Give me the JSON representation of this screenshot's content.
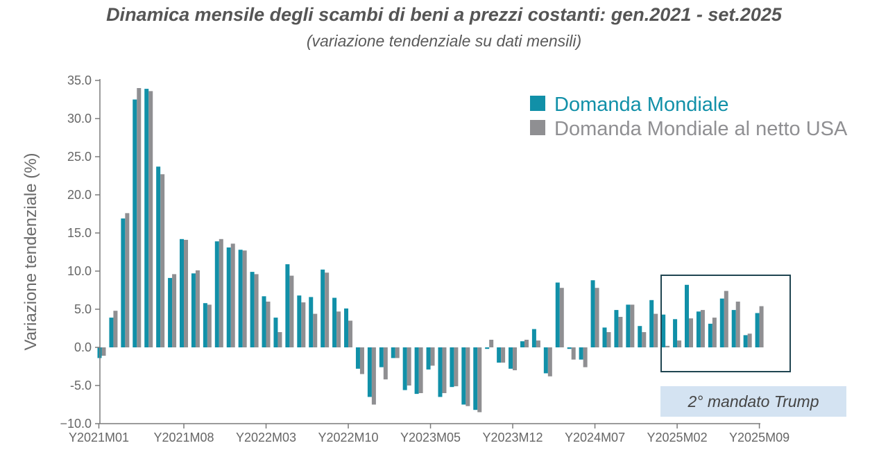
{
  "title": "Dinamica mensile degli scambi di beni a prezzi costanti: gen.2021 - set.2025",
  "subtitle": "(variazione tendenziale su dati mensili)",
  "annotation": "2° mandato Trump",
  "colors": {
    "series1": "#1190a8",
    "series2": "#8f8f92",
    "axis": "#7a7a7a",
    "box": "#1f4450",
    "annotation_bg": "#d4e3f2"
  },
  "chart_data": {
    "type": "bar",
    "ylabel": "Variazione tendenziale (%)",
    "ylim": [
      -10,
      35
    ],
    "yticks": [
      "35.0",
      "30.0",
      "25.0",
      "20.0",
      "15.0",
      "10.0",
      "5.0",
      "0.0",
      "-5.0",
      "−10.0"
    ],
    "ytick_values": [
      35,
      30,
      25,
      20,
      15,
      10,
      5,
      0,
      -5,
      -10
    ],
    "xtick_labels": [
      {
        "index": 0,
        "label": "Y2021M01"
      },
      {
        "index": 7,
        "label": "Y2021M08"
      },
      {
        "index": 14,
        "label": "Y2022M03"
      },
      {
        "index": 21,
        "label": "Y2022M10"
      },
      {
        "index": 28,
        "label": "Y2023M05"
      },
      {
        "index": 35,
        "label": "Y2023M12"
      },
      {
        "index": 42,
        "label": "Y2024M07"
      },
      {
        "index": 49,
        "label": "Y2025M02"
      },
      {
        "index": 56,
        "label": "Y2025M09"
      }
    ],
    "legend_position": "top-right",
    "series": [
      {
        "name": "Domanda Mondiale",
        "values": [
          -1.4,
          3.9,
          16.9,
          32.5,
          33.9,
          23.7,
          9.1,
          14.2,
          9.7,
          5.8,
          13.9,
          13.1,
          12.8,
          9.9,
          6.7,
          3.9,
          10.9,
          6.8,
          6.6,
          10.2,
          6.5,
          5.1,
          -2.8,
          -6.5,
          -2.6,
          -1.4,
          -5.6,
          -6.1,
          -2.9,
          -6.5,
          -5.2,
          -7.5,
          -8.2,
          -0.2,
          -2.0,
          -2.8,
          0.8,
          2.4,
          -3.4,
          8.5,
          -0.2,
          -1.6,
          8.8,
          2.6,
          4.9,
          5.6,
          2.8,
          6.2,
          4.3,
          3.7,
          8.2,
          4.7,
          3.1,
          6.4,
          4.9,
          1.6,
          4.5
        ]
      },
      {
        "name": "Domanda Mondiale al netto USA",
        "values": [
          -1.1,
          4.8,
          17.6,
          34.0,
          33.6,
          22.7,
          9.6,
          14.1,
          10.1,
          5.6,
          14.2,
          13.6,
          12.7,
          9.6,
          6.0,
          2.0,
          9.4,
          5.9,
          4.4,
          9.8,
          4.7,
          3.5,
          -3.5,
          -7.5,
          -4.2,
          -1.4,
          -5.0,
          -6.0,
          -2.4,
          -6.0,
          -5.1,
          -7.7,
          -8.5,
          1.0,
          -2.0,
          -3.0,
          1.0,
          0.9,
          -3.8,
          7.8,
          -1.6,
          -2.6,
          7.8,
          2.0,
          4.0,
          5.6,
          2.0,
          4.4,
          0.2,
          0.9,
          3.8,
          4.9,
          3.9,
          7.4,
          6.0,
          1.8,
          5.4
        ]
      }
    ]
  }
}
